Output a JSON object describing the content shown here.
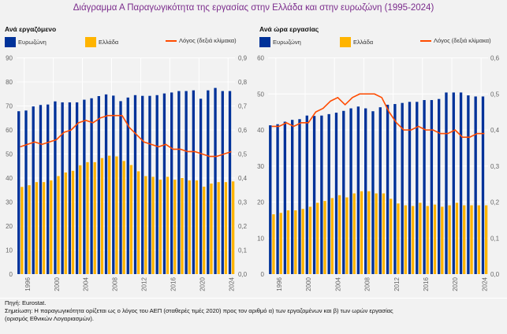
{
  "title": "Διάγραμμα Α Παραγωγικότητα της εργασίας στην Ελλάδα και στην ευρωζώνη (1995-2024)",
  "colors": {
    "eurozone": "#003299",
    "greece": "#ffb400",
    "ratio": "#ff4b00",
    "title": "#7b2c8c"
  },
  "chart_data": [
    {
      "type": "bar",
      "title": "Ανά εργαζόμενο",
      "legend": [
        "Ευρωζώνη",
        "Ελλάδα",
        "Λόγος (δεξιά κλίμακα)"
      ],
      "legend_position": "top",
      "categories": [
        1995,
        1996,
        1997,
        1998,
        1999,
        2000,
        2001,
        2002,
        2003,
        2004,
        2005,
        2006,
        2007,
        2008,
        2009,
        2010,
        2011,
        2012,
        2013,
        2014,
        2015,
        2016,
        2017,
        2018,
        2019,
        2020,
        2021,
        2022,
        2023,
        2024
      ],
      "x_tick_labels": [
        "1996",
        "2000",
        "2004",
        "2008",
        "2012",
        "2016",
        "2020",
        "2024"
      ],
      "series": [
        {
          "name": "Ευρωζώνη",
          "kind": "bar",
          "axis": "left",
          "values": [
            67.8,
            68.1,
            69.8,
            70.4,
            70.6,
            71.9,
            71.5,
            71.5,
            71.5,
            72.6,
            73.2,
            74.1,
            74.8,
            74.3,
            72.0,
            73.5,
            74.5,
            74.2,
            74.2,
            74.5,
            75.2,
            75.6,
            76.2,
            76.2,
            76.5,
            73.0,
            76.5,
            77.5,
            76.2,
            76.2
          ]
        },
        {
          "name": "Ελλάδα",
          "kind": "bar",
          "axis": "left",
          "values": [
            36.3,
            37.0,
            38.3,
            38.3,
            39.0,
            40.8,
            42.3,
            43.0,
            45.3,
            46.6,
            46.6,
            48.3,
            49.3,
            49.0,
            47.1,
            45.4,
            42.8,
            40.8,
            40.5,
            39.3,
            40.5,
            39.3,
            40.0,
            39.0,
            39.0,
            36.4,
            37.7,
            38.3,
            38.3,
            38.6
          ]
        },
        {
          "name": "Λόγος (δεξιά κλίμακα)",
          "kind": "line",
          "axis": "right",
          "values": [
            0.53,
            0.54,
            0.55,
            0.54,
            0.55,
            0.56,
            0.59,
            0.6,
            0.63,
            0.64,
            0.63,
            0.65,
            0.66,
            0.66,
            0.66,
            0.61,
            0.58,
            0.55,
            0.54,
            0.53,
            0.54,
            0.52,
            0.52,
            0.51,
            0.51,
            0.5,
            0.49,
            0.49,
            0.5,
            0.51
          ]
        }
      ],
      "ylim": [
        0,
        90
      ],
      "y_ticks": [
        "0",
        "10",
        "20",
        "30",
        "40",
        "50",
        "60",
        "70",
        "80",
        "90"
      ],
      "y2lim": [
        0,
        0.9
      ],
      "y2_ticks": [
        "0,0",
        "0,1",
        "0,2",
        "0,3",
        "0,4",
        "0,5",
        "0,6",
        "0,7",
        "0,8",
        "0,9"
      ],
      "grid": true
    },
    {
      "type": "bar",
      "title": "Ανά ώρα εργασίας",
      "legend": [
        "Ευρωζώνη",
        "Ελλάδα",
        "Λόγος (δεξιά κλίμακα)"
      ],
      "legend_position": "top",
      "categories": [
        1995,
        1996,
        1997,
        1998,
        1999,
        2000,
        2001,
        2002,
        2003,
        2004,
        2005,
        2006,
        2007,
        2008,
        2009,
        2010,
        2011,
        2012,
        2013,
        2014,
        2015,
        2016,
        2017,
        2018,
        2019,
        2020,
        2021,
        2022,
        2023,
        2024
      ],
      "x_tick_labels": [
        "1996",
        "2000",
        "2004",
        "2008",
        "2012",
        "2016",
        "2020",
        "2024"
      ],
      "series": [
        {
          "name": "Ευρωζώνη",
          "kind": "bar",
          "axis": "left",
          "values": [
            41.3,
            41.6,
            42.3,
            42.8,
            43.0,
            44.0,
            43.9,
            44.0,
            44.4,
            44.8,
            45.3,
            46.0,
            46.5,
            46.0,
            45.2,
            46.3,
            47.0,
            47.2,
            47.5,
            47.8,
            47.8,
            48.3,
            48.3,
            48.6,
            50.4,
            50.4,
            50.4,
            49.6,
            49.3,
            49.3
          ]
        },
        {
          "name": "Ελλάδα",
          "kind": "bar",
          "axis": "left",
          "values": [
            16.6,
            17.0,
            17.7,
            17.7,
            18.1,
            18.7,
            19.8,
            20.3,
            21.1,
            21.9,
            21.3,
            22.4,
            23.0,
            23.0,
            22.4,
            22.4,
            20.9,
            19.6,
            19.1,
            18.9,
            19.8,
            18.9,
            19.3,
            18.7,
            19.1,
            19.8,
            19.1,
            19.1,
            19.1,
            19.1
          ]
        },
        {
          "name": "Λόγος (δεξιά κλίμακα)",
          "kind": "line",
          "axis": "right",
          "values": [
            0.41,
            0.41,
            0.42,
            0.41,
            0.42,
            0.42,
            0.45,
            0.46,
            0.48,
            0.49,
            0.47,
            0.49,
            0.5,
            0.5,
            0.5,
            0.49,
            0.45,
            0.42,
            0.4,
            0.4,
            0.41,
            0.4,
            0.4,
            0.39,
            0.39,
            0.4,
            0.38,
            0.38,
            0.39,
            0.39
          ]
        }
      ],
      "ylim": [
        0,
        60
      ],
      "y_ticks": [
        "0",
        "10",
        "20",
        "30",
        "40",
        "50",
        "60"
      ],
      "y2lim": [
        0,
        0.6
      ],
      "y2_ticks": [
        "0,0",
        "0,1",
        "0,2",
        "0,3",
        "0,4",
        "0,5",
        "0,6"
      ],
      "grid": true
    }
  ],
  "footer": {
    "source": "Πηγή: Eurostat.",
    "note_line1": "Σημείωση: Η παραγωγικότητα ορίζεται ως ο λόγος του ΑΕΠ (σταθερές τιμές 2020) προς τον αριθμό α) των εργαζομένων και β) των ωρών εργασίας",
    "note_line2": "(ορισμός Εθνικών Λογαριασμών)."
  }
}
